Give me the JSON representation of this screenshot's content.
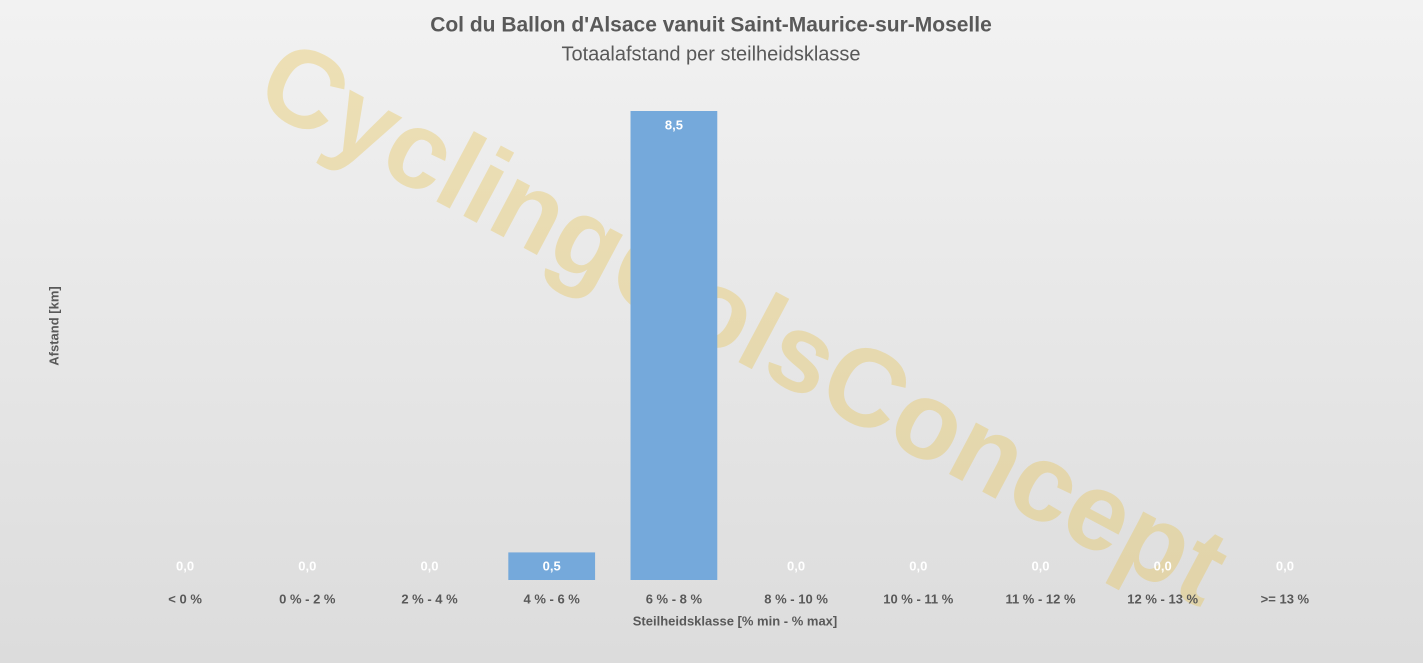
{
  "chart_data": {
    "type": "bar",
    "title": "Col du Ballon d'Alsace vanuit Saint-Maurice-sur-Moselle",
    "subtitle": "Totaalafstand per steilheidsklasse",
    "y_label": "Afstand [km]",
    "x_label": "Steilheidsklasse [% min - % max]",
    "watermark": "CyclingColsConcept",
    "categories": [
      "< 0 %",
      "0 % - 2 %",
      "2 % - 4 %",
      "4 % - 6 %",
      "6 % - 8 %",
      "8 % - 10 %",
      "10 % - 11 %",
      "11 % - 12 %",
      "12 % - 13 %",
      ">= 13 %"
    ],
    "values": [
      0,
      0,
      0,
      0.5,
      8.5,
      0,
      0,
      0,
      0,
      0
    ],
    "value_labels": [
      "0,0",
      "0,0",
      "0,0",
      "0,5",
      "8,5",
      "0,0",
      "0,0",
      "0,0",
      "0,0",
      "0,0"
    ],
    "color": "#75a9db"
  }
}
